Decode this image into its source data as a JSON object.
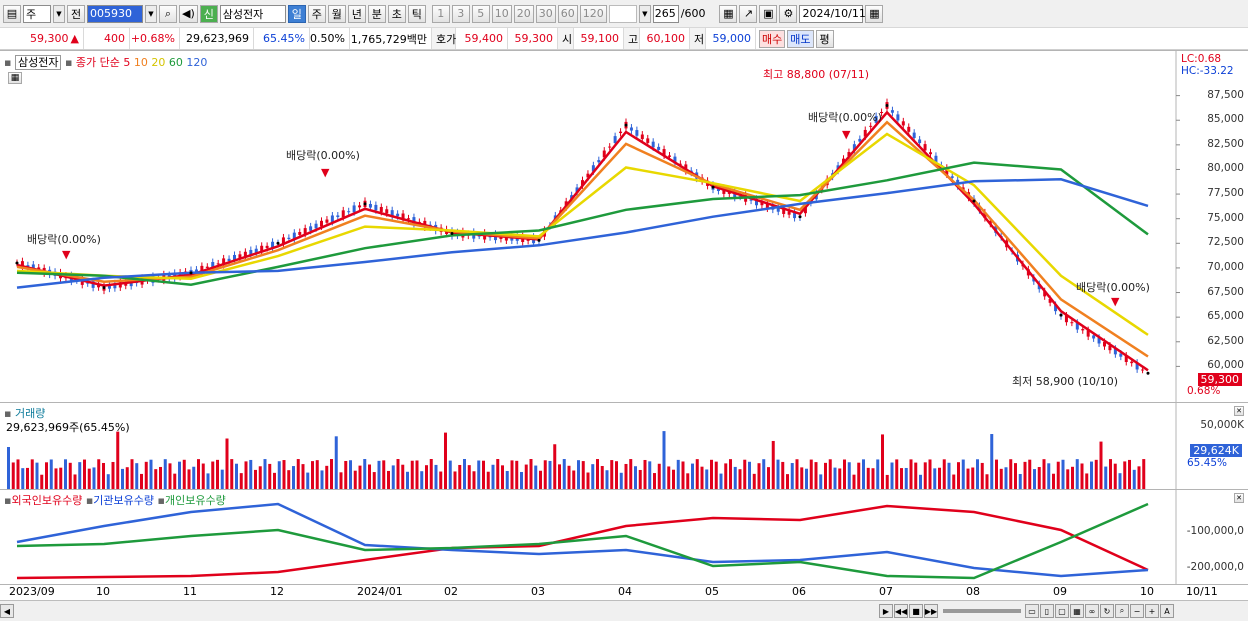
{
  "toolbar": {
    "market": "주",
    "prev_label": "전",
    "code": "005930",
    "stock_badge": "신",
    "stock_name": "삼성전자",
    "periods": [
      "일",
      "주",
      "월",
      "년",
      "분",
      "초",
      "틱"
    ],
    "nums": [
      "1",
      "3",
      "5",
      "10",
      "20",
      "30",
      "60",
      "120"
    ],
    "count": "265",
    "count_total": "/600",
    "date": "2024/10/11"
  },
  "quote": {
    "price": "59,300",
    "change": "400",
    "pct": "+0.68%",
    "volume": "29,623,969",
    "vol_ratio": "65.45%",
    "turnover": "0.50%",
    "amount": "1,765,729백만",
    "ask_label": "호가",
    "ask": "59,400",
    "bid": "59,300",
    "open_label": "시",
    "open": "59,100",
    "high_label": "고",
    "high": "60,100",
    "low_label": "저",
    "low": "59,000",
    "buy": "매수",
    "sell": "매도",
    "eval": "평"
  },
  "price_pane": {
    "title": "삼성전자",
    "ma_label": "종가 단순",
    "ma_periods": [
      {
        "label": "5",
        "color": "#e0001b"
      },
      {
        "label": "10",
        "color": "#f08020"
      },
      {
        "label": "20",
        "color": "#e8d800"
      },
      {
        "label": "60",
        "color": "#1e9a3c"
      },
      {
        "label": "120",
        "color": "#2f63d8"
      }
    ],
    "lc": "LC:0.68",
    "hc": "HC:-33.22",
    "yticks": [
      "87,500",
      "85,000",
      "82,500",
      "80,000",
      "77,500",
      "75,000",
      "72,500",
      "70,000",
      "67,500",
      "65,000",
      "62,500",
      "60,000"
    ],
    "last_price": "59,300",
    "last_pct": "0.68%",
    "high_note": "최고 88,800 (07/11)",
    "low_note": "최저 58,900 (10/10)",
    "dividend_notes": [
      "배당락(0.00%)",
      "배당락(0.00%)",
      "배당락(0.00%)",
      "배당락(0.00%)"
    ]
  },
  "volume_pane": {
    "title": "거래량",
    "value": "29,623,969주(65.45%)",
    "ytick": "50,000K",
    "last": "29,624K",
    "last_pct": "65.45%"
  },
  "holdings_pane": {
    "legend": [
      "외국인보유수량",
      "기관보유수량",
      "개인보유수량"
    ],
    "colors": [
      "#e0001b",
      "#2f63d8",
      "#1e9a3c"
    ],
    "yticks": [
      "-100,000,0",
      "-200,000,0"
    ]
  },
  "xaxis": [
    "2023/09",
    "10",
    "11",
    "12",
    "2024/01",
    "02",
    "03",
    "04",
    "05",
    "06",
    "07",
    "08",
    "09",
    "10",
    "10/11"
  ],
  "chart_data": {
    "type": "line",
    "title": "삼성전자",
    "x": [
      "2023/09",
      "10",
      "11",
      "12",
      "2024/01",
      "02",
      "03",
      "04",
      "05",
      "06",
      "07",
      "08",
      "09",
      "10"
    ],
    "ylim": [
      57500,
      90000
    ],
    "series": [
      {
        "name": "종가",
        "values": [
          70500,
          68000,
          69500,
          72500,
          76500,
          73500,
          72800,
          84500,
          78200,
          75200,
          86500,
          76800,
          65200,
          59300
        ]
      },
      {
        "name": "5",
        "values": [
          70300,
          68200,
          69300,
          72200,
          76000,
          73600,
          72900,
          83800,
          78300,
          75500,
          85800,
          76500,
          65600,
          59600
        ]
      },
      {
        "name": "10",
        "values": [
          70100,
          68600,
          69100,
          71800,
          75300,
          73700,
          73000,
          82600,
          78500,
          75900,
          84800,
          76900,
          66800,
          61000
        ]
      },
      {
        "name": "20",
        "values": [
          69700,
          69200,
          68900,
          71200,
          74200,
          73800,
          73200,
          80200,
          78600,
          76800,
          83600,
          78400,
          69200,
          63200
        ]
      },
      {
        "name": "60",
        "values": [
          69500,
          69200,
          68300,
          70100,
          72000,
          73300,
          73800,
          75900,
          77000,
          77400,
          78900,
          80700,
          80000,
          73400
        ]
      },
      {
        "name": "120",
        "values": [
          68000,
          69000,
          69500,
          69700,
          70600,
          71600,
          72300,
          73600,
          75200,
          76500,
          77600,
          78800,
          79000,
          76300
        ]
      }
    ]
  }
}
